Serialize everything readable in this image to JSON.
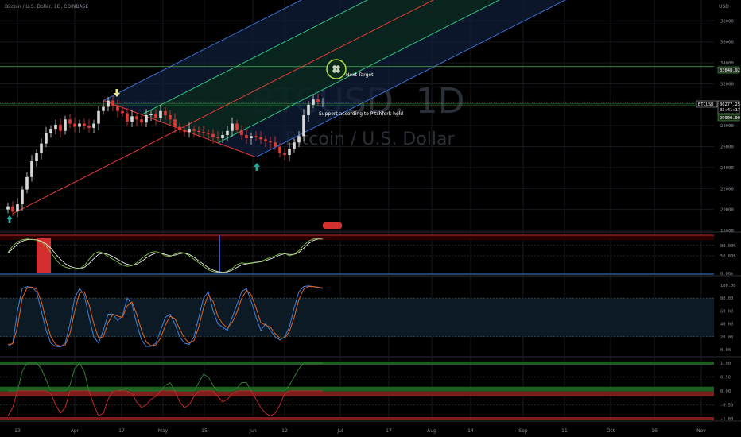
{
  "header": {
    "title": "Bitcoin / U.S. Dollar, 1D, COINBASE",
    "currency": "USD"
  },
  "watermark": {
    "symbol": "BTCUSD, 1D",
    "name": "Bitcoin / U.S. Dollar"
  },
  "colors": {
    "bg": "#000000",
    "grid": "#161a20",
    "up": "#d8d8d8",
    "down": "#e53935",
    "pitch_outer": "#3c6fd6",
    "pitch_inner": "#2ec27e",
    "pitch_median": "#e53935",
    "zone_lower": "#0f1d3a",
    "zone_upper": "#0a2a1c",
    "level_line": "#4caf50",
    "stoch_k": "#3f7fd9",
    "stoch_d": "#e0651e",
    "osc_line": "#2e7d32",
    "osc_neg": "#c62828"
  },
  "annotations": {
    "next_target": "Next Target",
    "support_note": "Support according to Pitchfork hold",
    "flag_badge": "",
    "target_icon": "clover-icon"
  },
  "price_labels": {
    "target_level": "33648.92",
    "symbol_tag": "BTCUSD",
    "current_price": "30277.25",
    "countdown": "03:41:17",
    "support_level": "29900.00"
  },
  "chart_data": [
    {
      "type": "candlestick",
      "name": "main",
      "ylim": [
        18000,
        40000
      ],
      "y_ticks": [
        18000,
        20000,
        22000,
        24000,
        26000,
        28000,
        30000,
        32000,
        34000,
        36000,
        38000
      ],
      "x_ticks": [
        "13",
        "Apr",
        "17",
        "May",
        "15",
        "Jun",
        "12",
        "Jul",
        "17",
        "Aug",
        "14",
        "Sep",
        "11",
        "Oct",
        "16",
        "Nov"
      ],
      "levels": [
        33648.92,
        29900
      ],
      "pitchfork": {
        "pivot": {
          "bar": 1,
          "price": 19600
        },
        "a": {
          "bar": 20,
          "price": 30400
        },
        "b": {
          "bar": 52,
          "price": 25000
        }
      },
      "close": [
        20300,
        19800,
        20500,
        21900,
        23100,
        24600,
        25400,
        26300,
        27300,
        27700,
        28100,
        27500,
        28600,
        28200,
        27900,
        28200,
        28000,
        27800,
        28200,
        29400,
        29800,
        30400,
        29900,
        29400,
        29200,
        28400,
        28900,
        28600,
        28300,
        29000,
        29100,
        28700,
        29400,
        29000,
        28600,
        27900,
        27600,
        27400,
        27700,
        27500,
        27400,
        27300,
        27200,
        26900,
        26800,
        27100,
        27500,
        28200,
        27600,
        27100,
        26800,
        27000,
        26900,
        26700,
        26500,
        26400,
        26000,
        25400,
        25200,
        25800,
        26400,
        27000,
        29000,
        30000,
        30500,
        30300,
        30300
      ]
    },
    {
      "type": "line",
      "name": "oscillator-1",
      "ylim": [
        0,
        100
      ],
      "y_ticks_labels": [
        "80.00%",
        "50.00%",
        "0.00%"
      ],
      "y_ticks": [
        80,
        50,
        0
      ],
      "series": [
        {
          "values": [
            60,
            78,
            90,
            96,
            98,
            97,
            95,
            90,
            78,
            60,
            40,
            25,
            18,
            14,
            12,
            13,
            22,
            40,
            55,
            62,
            58,
            48,
            40,
            32,
            24,
            20,
            22,
            30,
            42,
            52,
            60,
            62,
            58,
            50,
            48,
            55,
            60,
            58,
            50,
            40,
            30,
            20,
            10,
            5,
            3,
            2,
            6,
            14,
            25,
            30,
            28,
            30,
            32,
            34,
            40,
            45,
            50,
            56,
            58,
            50,
            55,
            65,
            80,
            92,
            98,
            99,
            98
          ]
        },
        {
          "values": [
            58,
            70,
            84,
            92,
            96,
            97,
            96,
            92,
            84,
            72,
            55,
            40,
            28,
            20,
            16,
            14,
            17,
            28,
            42,
            54,
            58,
            54,
            48,
            40,
            32,
            26,
            23,
            26,
            34,
            44,
            52,
            58,
            58,
            54,
            50,
            52,
            56,
            58,
            54,
            46,
            36,
            26,
            16,
            9,
            5,
            3,
            4,
            9,
            17,
            24,
            27,
            29,
            31,
            33,
            36,
            41,
            46,
            52,
            56,
            54,
            54,
            60,
            72,
            85,
            94,
            98,
            98
          ]
        }
      ],
      "highlight_zones": [
        {
          "from": 6,
          "to": 9,
          "type": "overbought"
        },
        {
          "from": 44,
          "to": 45,
          "type": "oversold"
        }
      ]
    },
    {
      "type": "line",
      "name": "stochastic",
      "ylim": [
        0,
        100
      ],
      "y_ticks": [
        100,
        80,
        60,
        40,
        20,
        0
      ],
      "y_tick_labels": [
        "100.00",
        "80.00",
        "60.00",
        "40.00",
        "20.00",
        "0.00"
      ],
      "series": [
        {
          "values": [
            5,
            10,
            60,
            95,
            98,
            97,
            90,
            60,
            30,
            10,
            5,
            4,
            10,
            40,
            80,
            95,
            85,
            50,
            20,
            10,
            30,
            55,
            55,
            45,
            52,
            80,
            70,
            40,
            15,
            5,
            5,
            10,
            30,
            50,
            55,
            40,
            20,
            10,
            8,
            20,
            50,
            80,
            90,
            60,
            40,
            35,
            30,
            50,
            70,
            90,
            95,
            75,
            50,
            30,
            40,
            30,
            20,
            15,
            20,
            35,
            65,
            90,
            98,
            99,
            98,
            96,
            95
          ]
        },
        {
          "values": [
            8,
            9,
            35,
            80,
            96,
            97,
            94,
            75,
            45,
            20,
            8,
            5,
            7,
            25,
            60,
            88,
            90,
            70,
            40,
            18,
            20,
            42,
            55,
            52,
            50,
            68,
            74,
            55,
            30,
            12,
            6,
            7,
            18,
            38,
            52,
            48,
            32,
            18,
            10,
            14,
            35,
            65,
            85,
            75,
            52,
            40,
            34,
            42,
            58,
            80,
            92,
            85,
            65,
            42,
            38,
            35,
            25,
            18,
            18,
            28,
            50,
            78,
            94,
            98,
            98,
            97,
            96
          ]
        }
      ]
    },
    {
      "type": "line",
      "name": "oscillator-2",
      "ylim": [
        -1,
        1
      ],
      "y_ticks": [
        1,
        0.5,
        0,
        -0.5,
        -1
      ],
      "y_tick_labels": [
        "1.00",
        "0.50",
        "0.00",
        "-0.50",
        "-1.00"
      ],
      "series": [
        {
          "values": [
            -0.9,
            -0.6,
            0,
            0.7,
            1,
            1,
            1,
            0.8,
            0.4,
            -0.1,
            -0.5,
            -0.8,
            -0.6,
            0.2,
            0.8,
            1,
            0.7,
            0,
            -0.5,
            -0.9,
            -0.8,
            -0.3,
            0,
            0,
            0.05,
            0.1,
            -0.1,
            -0.4,
            -0.6,
            -0.5,
            -0.3,
            -0.2,
            0,
            0.2,
            0.3,
            0,
            -0.4,
            -0.6,
            -0.5,
            -0.2,
            0.3,
            0.6,
            0.5,
            0.2,
            -0.2,
            -0.4,
            -0.3,
            -0.1,
            0.1,
            0.3,
            0.3,
            0,
            -0.3,
            -0.6,
            -0.8,
            -0.9,
            -0.8,
            -0.5,
            -0.1,
            0.2,
            0.5,
            0.8,
            1,
            1,
            1,
            1,
            1
          ]
        }
      ]
    }
  ]
}
